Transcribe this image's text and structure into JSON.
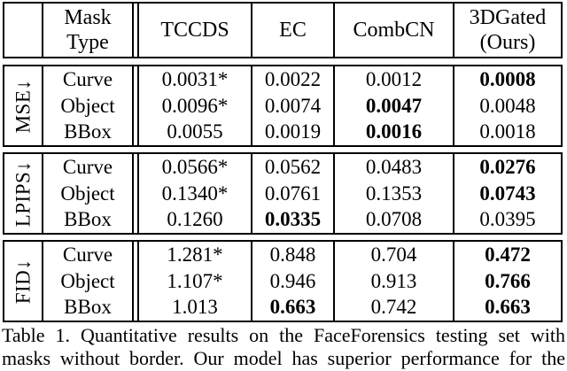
{
  "colors": {
    "text": "#000000",
    "background": "#ffffff",
    "border": "#000000"
  },
  "table": {
    "header": {
      "corner": "",
      "mask_type": [
        "Mask",
        "Type"
      ],
      "methods": [
        "TCCDS",
        "EC",
        "CombCN"
      ],
      "ours": [
        "3DGated",
        "(Ours)"
      ]
    },
    "groups": [
      {
        "metric": "MSE↓",
        "rows": [
          {
            "mask": "Curve",
            "values": [
              "0.0031*",
              "0.0022",
              "0.0012",
              "0.0008"
            ],
            "bold": [
              false,
              false,
              false,
              true
            ]
          },
          {
            "mask": "Object",
            "values": [
              "0.0096*",
              "0.0074",
              "0.0047",
              "0.0048"
            ],
            "bold": [
              false,
              false,
              true,
              false
            ]
          },
          {
            "mask": "BBox",
            "values": [
              "0.0055",
              "0.0019",
              "0.0016",
              "0.0018"
            ],
            "bold": [
              false,
              false,
              true,
              false
            ]
          }
        ]
      },
      {
        "metric": "LPIPS↓",
        "rows": [
          {
            "mask": "Curve",
            "values": [
              "0.0566*",
              "0.0562",
              "0.0483",
              "0.0276"
            ],
            "bold": [
              false,
              false,
              false,
              true
            ]
          },
          {
            "mask": "Object",
            "values": [
              "0.1340*",
              "0.0761",
              "0.1353",
              "0.0743"
            ],
            "bold": [
              false,
              false,
              false,
              true
            ]
          },
          {
            "mask": "BBox",
            "values": [
              "0.1260",
              "0.0335",
              "0.0708",
              "0.0395"
            ],
            "bold": [
              false,
              true,
              false,
              false
            ]
          }
        ]
      },
      {
        "metric": "FID↓",
        "rows": [
          {
            "mask": "Curve",
            "values": [
              "1.281*",
              "0.848",
              "0.704",
              "0.472"
            ],
            "bold": [
              false,
              false,
              false,
              true
            ]
          },
          {
            "mask": "Object",
            "values": [
              "1.107*",
              "0.946",
              "0.913",
              "0.766"
            ],
            "bold": [
              false,
              false,
              false,
              true
            ]
          },
          {
            "mask": "BBox",
            "values": [
              "1.013",
              "0.663",
              "0.742",
              "0.663"
            ],
            "bold": [
              false,
              true,
              false,
              true
            ]
          }
        ]
      }
    ]
  },
  "caption": {
    "lines": [
      "Table 1. Quantitative results on the FaceForensics testing set with",
      "masks without border. Our model has superior performance for the"
    ]
  },
  "chart_data": {
    "type": "table",
    "title": "Table 1. Quantitative results on the FaceForensics testing set with masks without border.",
    "columns": [
      "Mask Type",
      "TCCDS",
      "EC",
      "CombCN",
      "3DGated (Ours)"
    ],
    "row_groups": [
      {
        "metric": "MSE (lower is better)",
        "rows": [
          [
            "Curve",
            0.0031,
            0.0022,
            0.0012,
            0.0008
          ],
          [
            "Object",
            0.0096,
            0.0074,
            0.0047,
            0.0048
          ],
          [
            "BBox",
            0.0055,
            0.0019,
            0.0016,
            0.0018
          ]
        ]
      },
      {
        "metric": "LPIPS (lower is better)",
        "rows": [
          [
            "Curve",
            0.0566,
            0.0562,
            0.0483,
            0.0276
          ],
          [
            "Object",
            0.134,
            0.0761,
            0.1353,
            0.0743
          ],
          [
            "BBox",
            0.126,
            0.0335,
            0.0708,
            0.0395
          ]
        ]
      },
      {
        "metric": "FID (lower is better)",
        "rows": [
          [
            "Curve",
            1.281,
            0.848,
            0.704,
            0.472
          ],
          [
            "Object",
            1.107,
            0.946,
            0.913,
            0.766
          ],
          [
            "BBox",
            1.013,
            0.663,
            0.742,
            0.663
          ]
        ]
      }
    ],
    "notes": "* marks TCCDS values; bold marks best (lowest) value per row"
  }
}
